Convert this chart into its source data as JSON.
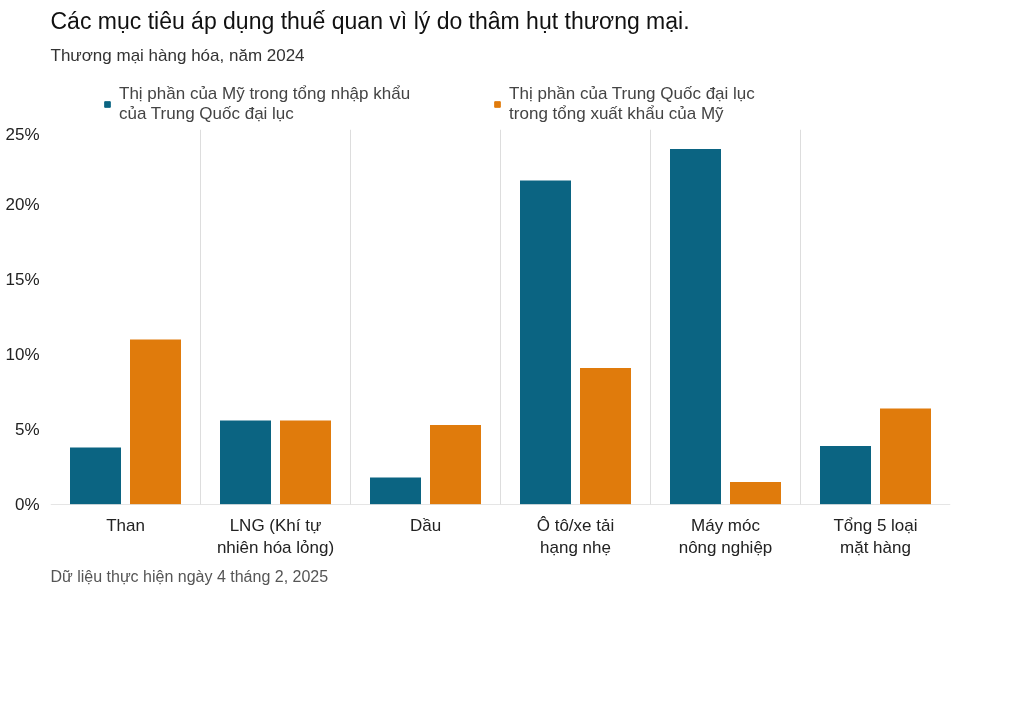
{
  "chart_data": {
    "type": "bar",
    "title": "Các mục tiêu áp dụng thuế quan vì lý do thâm hụt thương mại.",
    "subtitle": "Thương mại hàng hóa, năm 2024",
    "categories": [
      "Than",
      "LNG (Khí tự\nnhiên hóa lỏng)",
      "Dầu",
      "Ô tô/xe tải\nhạng nhẹ",
      "Máy móc\nnông nghiệp",
      "Tổng 5 loại\nmặt hàng"
    ],
    "series": [
      {
        "name": "Thị phần của Mỹ trong tổng nhập khẩu\ncủa Trung Quốc đại lục",
        "color": "#0b6482",
        "values": [
          3.8,
          5.6,
          1.8,
          21.6,
          23.7,
          3.9
        ]
      },
      {
        "name": "Thị phần của Trung Quốc đại lục\ntrong tổng xuất khẩu của Mỹ",
        "color": "#e07b0c",
        "values": [
          11.0,
          5.6,
          5.3,
          9.1,
          1.5,
          6.4
        ]
      }
    ],
    "ylim": [
      0,
      25
    ],
    "yticks": [
      {
        "value": 0,
        "label": "0%"
      },
      {
        "value": 5,
        "label": "5%"
      },
      {
        "value": 10,
        "label": "10%"
      },
      {
        "value": 15,
        "label": "15%"
      },
      {
        "value": 20,
        "label": "20%"
      },
      {
        "value": 25,
        "label": "25%"
      }
    ],
    "grid": "x",
    "legend": "top",
    "annotations": [
      "Dữ liệu thực hiện ngày 4 tháng 2, 2025"
    ]
  }
}
